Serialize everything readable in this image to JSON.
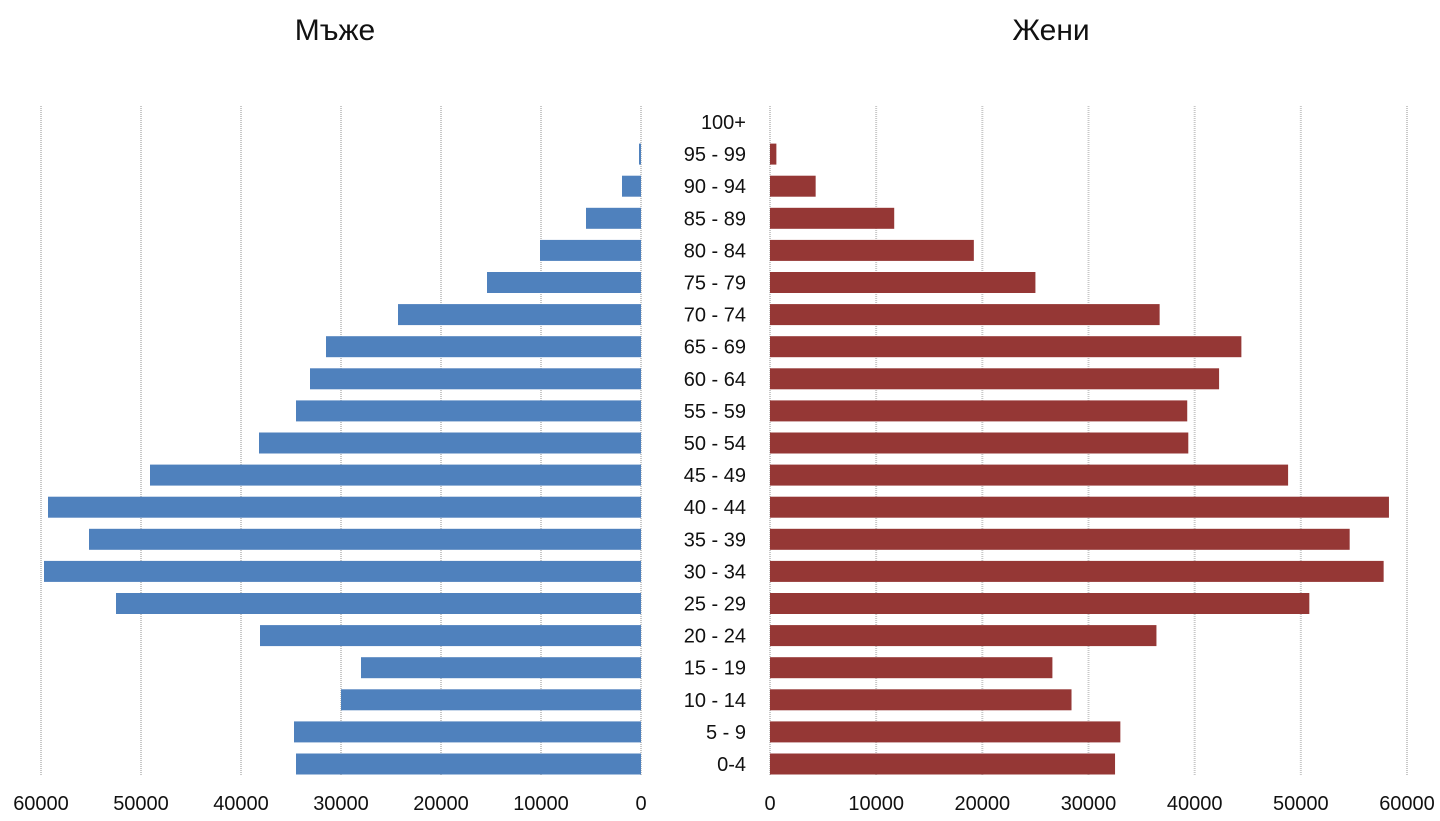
{
  "chart_data": [
    {
      "type": "bar",
      "orientation": "horizontal",
      "x_direction": "reversed",
      "title": "Мъже",
      "categories": [
        "0-4",
        "5 - 9",
        "10 - 14",
        "15 - 19",
        "20 - 24",
        "25 - 29",
        "30 - 34",
        "35 - 39",
        "40 - 44",
        "45 - 49",
        "50 - 54",
        "55 - 59",
        "60 - 64",
        "65 - 69",
        "70 - 74",
        "75 - 79",
        "80 - 84",
        "85 - 89",
        "90 - 94",
        "95 - 99",
        "100+"
      ],
      "values": [
        34500,
        34700,
        30000,
        28000,
        38100,
        52500,
        59700,
        55200,
        59300,
        49100,
        38200,
        34500,
        33100,
        31500,
        24300,
        15400,
        10100,
        5500,
        1900,
        200,
        0
      ],
      "xlim": [
        0,
        60000
      ],
      "xticks": [
        0,
        10000,
        20000,
        30000,
        40000,
        50000,
        60000
      ],
      "grid": true,
      "color": "#4f81bd"
    },
    {
      "type": "bar",
      "orientation": "horizontal",
      "title": "Жени",
      "categories": [
        "0-4",
        "5 - 9",
        "10 - 14",
        "15 - 19",
        "20 - 24",
        "25 - 29",
        "30 - 34",
        "35 - 39",
        "40 - 44",
        "45 - 49",
        "50 - 54",
        "55 - 59",
        "60 - 64",
        "65 - 69",
        "70 - 74",
        "75 - 79",
        "80 - 84",
        "85 - 89",
        "90 - 94",
        "95 - 99",
        "100+"
      ],
      "values": [
        32500,
        33000,
        28400,
        26600,
        36400,
        50800,
        57800,
        54600,
        58300,
        48800,
        39400,
        39300,
        42300,
        44400,
        36700,
        25000,
        19200,
        11700,
        4300,
        600,
        0
      ],
      "xlim": [
        0,
        60000
      ],
      "xticks": [
        0,
        10000,
        20000,
        30000,
        40000,
        50000,
        60000
      ],
      "grid": true,
      "color": "#953735"
    }
  ]
}
